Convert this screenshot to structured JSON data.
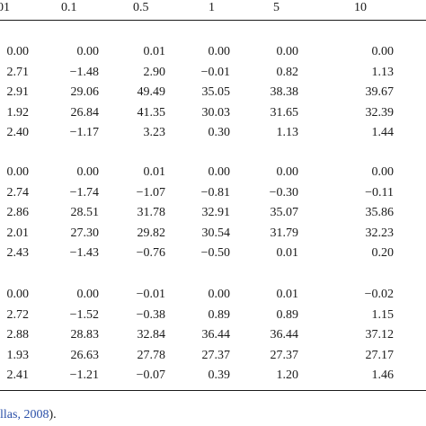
{
  "header": [
    "01",
    "0.1",
    "0.5",
    "1",
    "5",
    "10"
  ],
  "groups": [
    {
      "rows": [
        [
          "0.00",
          "0.00",
          "0.01",
          "0.00",
          "0.00",
          "0.00"
        ],
        [
          "2.71",
          "−1.48",
          "2.90",
          "−0.01",
          "0.82",
          "1.13"
        ],
        [
          "2.91",
          "29.06",
          "49.49",
          "35.05",
          "38.38",
          "39.67"
        ],
        [
          "1.92",
          "26.84",
          "41.35",
          "30.03",
          "31.65",
          "32.39"
        ],
        [
          "2.40",
          "−1.17",
          "3.23",
          "0.30",
          "1.13",
          "1.44"
        ]
      ]
    },
    {
      "rows": [
        [
          "0.00",
          "0.00",
          "0.01",
          "0.00",
          "0.00",
          "0.00"
        ],
        [
          "2.74",
          "−1.74",
          "−1.07",
          "−0.81",
          "−0.30",
          "−0.11"
        ],
        [
          "2.86",
          "28.51",
          "31.78",
          "32.91",
          "35.07",
          "35.86"
        ],
        [
          "2.01",
          "27.30",
          "29.82",
          "30.54",
          "31.79",
          "32.23"
        ],
        [
          "2.43",
          "−1.43",
          "−0.76",
          "−0.50",
          "0.01",
          "0.20"
        ]
      ]
    },
    {
      "rows": [
        [
          "0.00",
          "0.00",
          "−0.01",
          "0.00",
          "0.01",
          "−0.02"
        ],
        [
          "2.72",
          "−1.52",
          "−0.38",
          "0.89",
          "0.89",
          "1.15"
        ],
        [
          "2.88",
          "28.83",
          "32.84",
          "36.44",
          "36.44",
          "37.12"
        ],
        [
          "1.93",
          "26.63",
          "27.78",
          "27.37",
          "27.37",
          "27.17"
        ],
        [
          "2.41",
          "−1.21",
          "−0.07",
          "0.39",
          "1.20",
          "1.46"
        ]
      ]
    }
  ],
  "footnote": {
    "link_text": "llas, 2008",
    "suffix": ")."
  }
}
